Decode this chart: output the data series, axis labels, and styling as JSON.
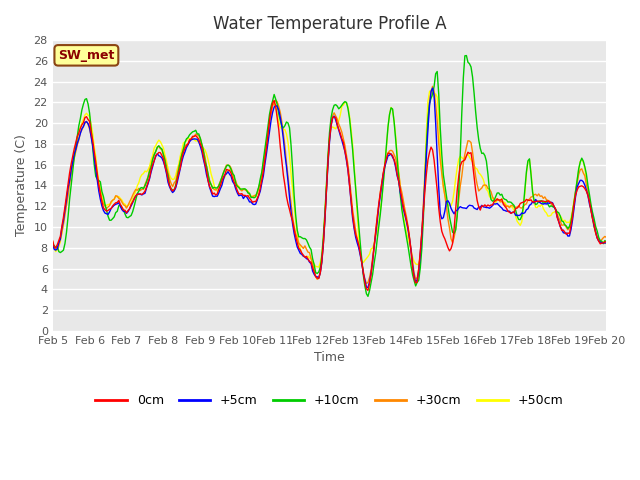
{
  "title": "Water Temperature Profile A",
  "xlabel": "Time",
  "ylabel": "Temperature (C)",
  "ylim": [
    0,
    28
  ],
  "xlim": [
    0,
    360
  ],
  "background_color": "#e8e8e8",
  "plot_bg_color": "#e8e8e8",
  "grid_color": "white",
  "annotation_text": "SW_met",
  "annotation_bg": "#ffff99",
  "annotation_border": "#8B4513",
  "series_colors": {
    "0cm": "#ff0000",
    "+5cm": "#0000ff",
    "+10cm": "#00cc00",
    "+30cm": "#ff8800",
    "+50cm": "#ffff00"
  },
  "xtick_labels": [
    "Feb 5",
    "Feb 6",
    "Feb 7",
    "Feb 8",
    "Feb 9",
    "Feb 10",
    "Feb 11",
    "Feb 12",
    "Feb 13",
    "Feb 14",
    "Feb 15",
    "Feb 16",
    "Feb 17",
    "Feb 18",
    "Feb 19",
    "Feb 20"
  ],
  "xtick_positions": [
    0,
    24,
    48,
    72,
    96,
    120,
    144,
    168,
    192,
    216,
    240,
    264,
    288,
    312,
    336,
    360
  ],
  "ytick_labels": [
    "0",
    "2",
    "4",
    "6",
    "8",
    "10",
    "12",
    "14",
    "16",
    "18",
    "20",
    "22",
    "24",
    "26",
    "28"
  ],
  "ytick_positions": [
    0,
    2,
    4,
    6,
    8,
    10,
    12,
    14,
    16,
    18,
    20,
    22,
    24,
    26,
    28
  ]
}
